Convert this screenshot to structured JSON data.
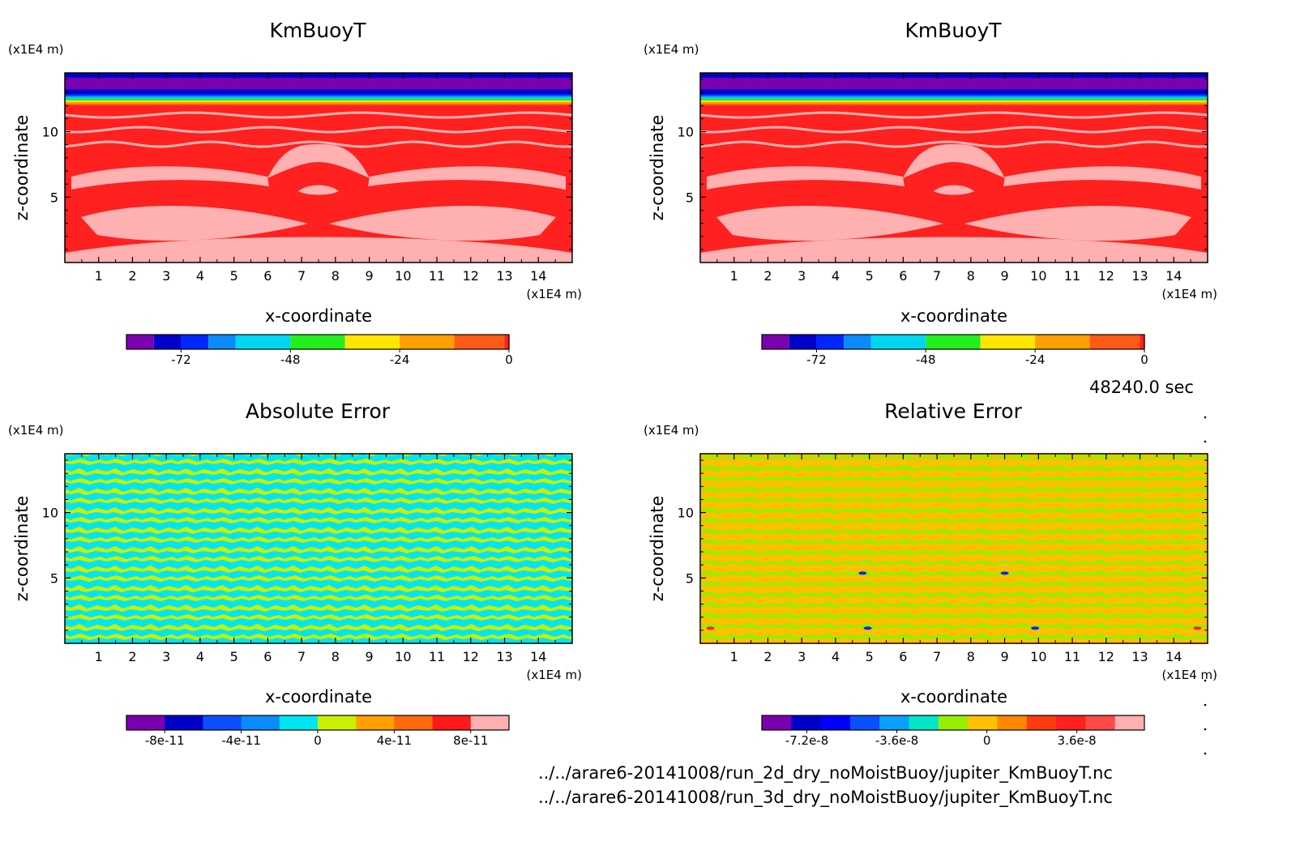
{
  "footer": {
    "time": "48240.0 sec",
    "file1": "../../arare6-20141008/run_2d_dry_noMoistBuoy/jupiter_KmBuoyT.nc",
    "file2": "../../arare6-20141008/run_3d_dry_noMoistBuoy/jupiter_KmBuoyT.nc"
  },
  "chart_data": [
    {
      "type": "heatmap",
      "title": "KmBuoyT",
      "xlabel": "x-coordinate",
      "ylabel": "z-coordinate",
      "xunit": "(x1E4 m)",
      "yunit": "(x1E4 m)",
      "xticks": [
        "1",
        "2",
        "3",
        "4",
        "5",
        "6",
        "7",
        "8",
        "9",
        "10",
        "11",
        "12",
        "13",
        "14"
      ],
      "yticks": [
        "5",
        "10"
      ],
      "xlim": [
        0,
        15
      ],
      "ylim": [
        0,
        14.5
      ],
      "colorbar": {
        "ticks": [
          "-72",
          "-48",
          "-24",
          "0"
        ],
        "tick_values": [
          -72,
          -48,
          -24,
          0
        ],
        "range": [
          -84,
          0
        ],
        "colors": [
          "#7b00b0",
          "#0000c8",
          "#0026ff",
          "#0a8cff",
          "#00d6f0",
          "#23ee1e",
          "#ffe600",
          "#ffa000",
          "#ff5a16",
          "#ff2020",
          "#ffb0b0"
        ],
        "levels": [
          -84,
          -78,
          -72,
          -66,
          -60,
          -48,
          -36,
          -24,
          -12,
          -1,
          0
        ]
      },
      "field": "KmBuoyT (2d run)"
    },
    {
      "type": "heatmap",
      "title": "KmBuoyT",
      "xlabel": "x-coordinate",
      "ylabel": "z-coordinate",
      "xunit": "(x1E4 m)",
      "yunit": "(x1E4 m)",
      "xticks": [
        "1",
        "2",
        "3",
        "4",
        "5",
        "6",
        "7",
        "8",
        "9",
        "10",
        "11",
        "12",
        "13",
        "14"
      ],
      "yticks": [
        "5",
        "10"
      ],
      "xlim": [
        0,
        15
      ],
      "ylim": [
        0,
        14.5
      ],
      "colorbar": {
        "ticks": [
          "-72",
          "-48",
          "-24",
          "0"
        ],
        "tick_values": [
          -72,
          -48,
          -24,
          0
        ],
        "range": [
          -84,
          0
        ],
        "colors": [
          "#7b00b0",
          "#0000c8",
          "#0026ff",
          "#0a8cff",
          "#00d6f0",
          "#23ee1e",
          "#ffe600",
          "#ffa000",
          "#ff5a16",
          "#ff2020",
          "#ffb0b0"
        ],
        "levels": [
          -84,
          -78,
          -72,
          -66,
          -60,
          -48,
          -36,
          -24,
          -12,
          -1,
          0
        ]
      },
      "field": "KmBuoyT (3d run)"
    },
    {
      "type": "heatmap",
      "title": "Absolute Error",
      "xlabel": "x-coordinate",
      "ylabel": "z-coordinate",
      "xunit": "(x1E4 m)",
      "yunit": "(x1E4 m)",
      "xticks": [
        "1",
        "2",
        "3",
        "4",
        "5",
        "6",
        "7",
        "8",
        "9",
        "10",
        "11",
        "12",
        "13",
        "14"
      ],
      "yticks": [
        "5",
        "10"
      ],
      "xlim": [
        0,
        15
      ],
      "ylim": [
        0,
        14.5
      ],
      "colorbar": {
        "ticks": [
          "-8e-11",
          "-4e-11",
          "0",
          "4e-11",
          "8e-11"
        ],
        "tick_values": [
          -8e-11,
          -4e-11,
          0,
          4e-11,
          8e-11
        ],
        "range": [
          -1e-10,
          1e-10
        ],
        "colors": [
          "#7b00b0",
          "#0000c8",
          "#0a50ff",
          "#0a8cff",
          "#00e6f0",
          "#c8f000",
          "#ffa000",
          "#ff6a10",
          "#ff1a1a",
          "#ffb0b0"
        ]
      },
      "field": "absolute difference"
    },
    {
      "type": "heatmap",
      "title": "Relative Error",
      "xlabel": "x-coordinate",
      "ylabel": "z-coordinate",
      "xunit": "(x1E4 m)",
      "yunit": "(x1E4 m)",
      "xticks": [
        "1",
        "2",
        "3",
        "4",
        "5",
        "6",
        "7",
        "8",
        "9",
        "10",
        "11",
        "12",
        "13",
        "14"
      ],
      "yticks": [
        "5",
        "10"
      ],
      "xlim": [
        0,
        15
      ],
      "ylim": [
        0,
        14.5
      ],
      "colorbar": {
        "ticks": [
          "-7.2e-8",
          "-3.6e-8",
          "0",
          "3.6e-8"
        ],
        "tick_values": [
          -7.2e-08,
          -3.6e-08,
          0,
          3.6e-08
        ],
        "range": [
          -9e-08,
          6.3e-08
        ],
        "colors": [
          "#7b00b0",
          "#0000c8",
          "#0000ff",
          "#0a50ff",
          "#0aa0ff",
          "#00e6c8",
          "#96ee00",
          "#ffc000",
          "#ff8800",
          "#ff3c10",
          "#ff2020",
          "#ff4a4a",
          "#ffb0b0"
        ]
      },
      "field": "relative difference"
    }
  ]
}
